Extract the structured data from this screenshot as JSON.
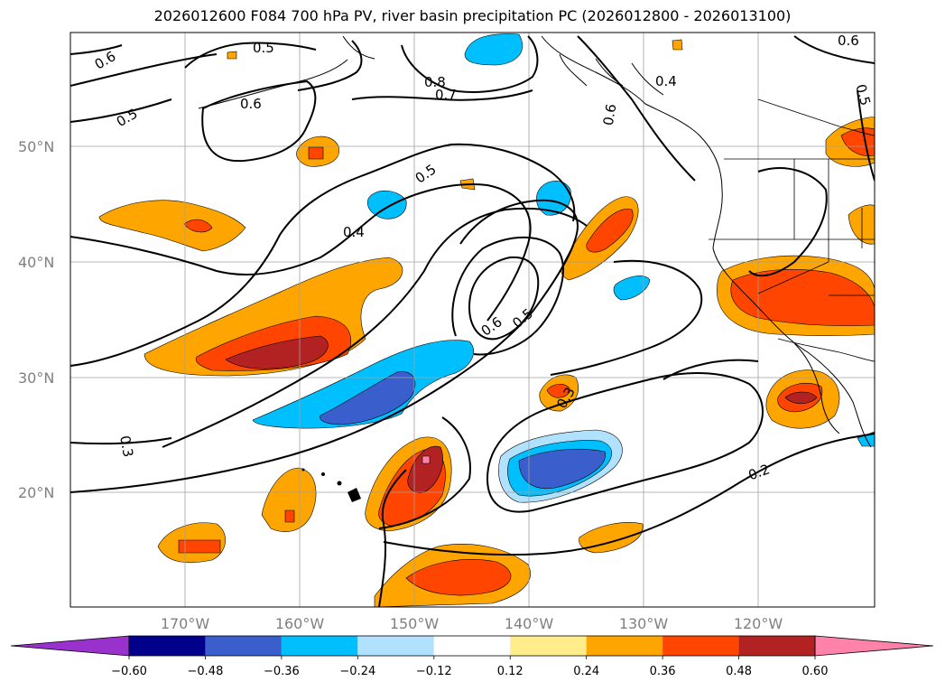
{
  "title": "2026012600 F084 700 hPa PV, river basin precipitation PC (2026012800 - 2026013100)",
  "map": {
    "lat_labels": [
      "50°N",
      "40°N",
      "30°N",
      "20°N"
    ],
    "lon_labels": [
      "170°W",
      "160°W",
      "150°W",
      "140°W",
      "130°W",
      "120°W"
    ],
    "contour_labels": [
      "0.6",
      "0.5",
      "0.6",
      "0.5",
      "0.8",
      "0.7",
      "0.6",
      "0.4",
      "0.5",
      "0.4",
      "0.6",
      "0.5",
      "0.3",
      "0.3",
      "0.2",
      "0.6",
      "0.5"
    ]
  },
  "colorbar": {
    "ticks": [
      "−0.60",
      "−0.48",
      "−0.36",
      "−0.24",
      "−0.12",
      "0.12",
      "0.24",
      "0.36",
      "0.48",
      "0.60"
    ],
    "colors": [
      "#9932cc",
      "#00008b",
      "#3a5fcd",
      "#00bfff",
      "#b0e2ff",
      "#ffffff",
      "#ffec8b",
      "#ffa500",
      "#ff4500",
      "#b22222",
      "#ff82ab"
    ]
  }
}
